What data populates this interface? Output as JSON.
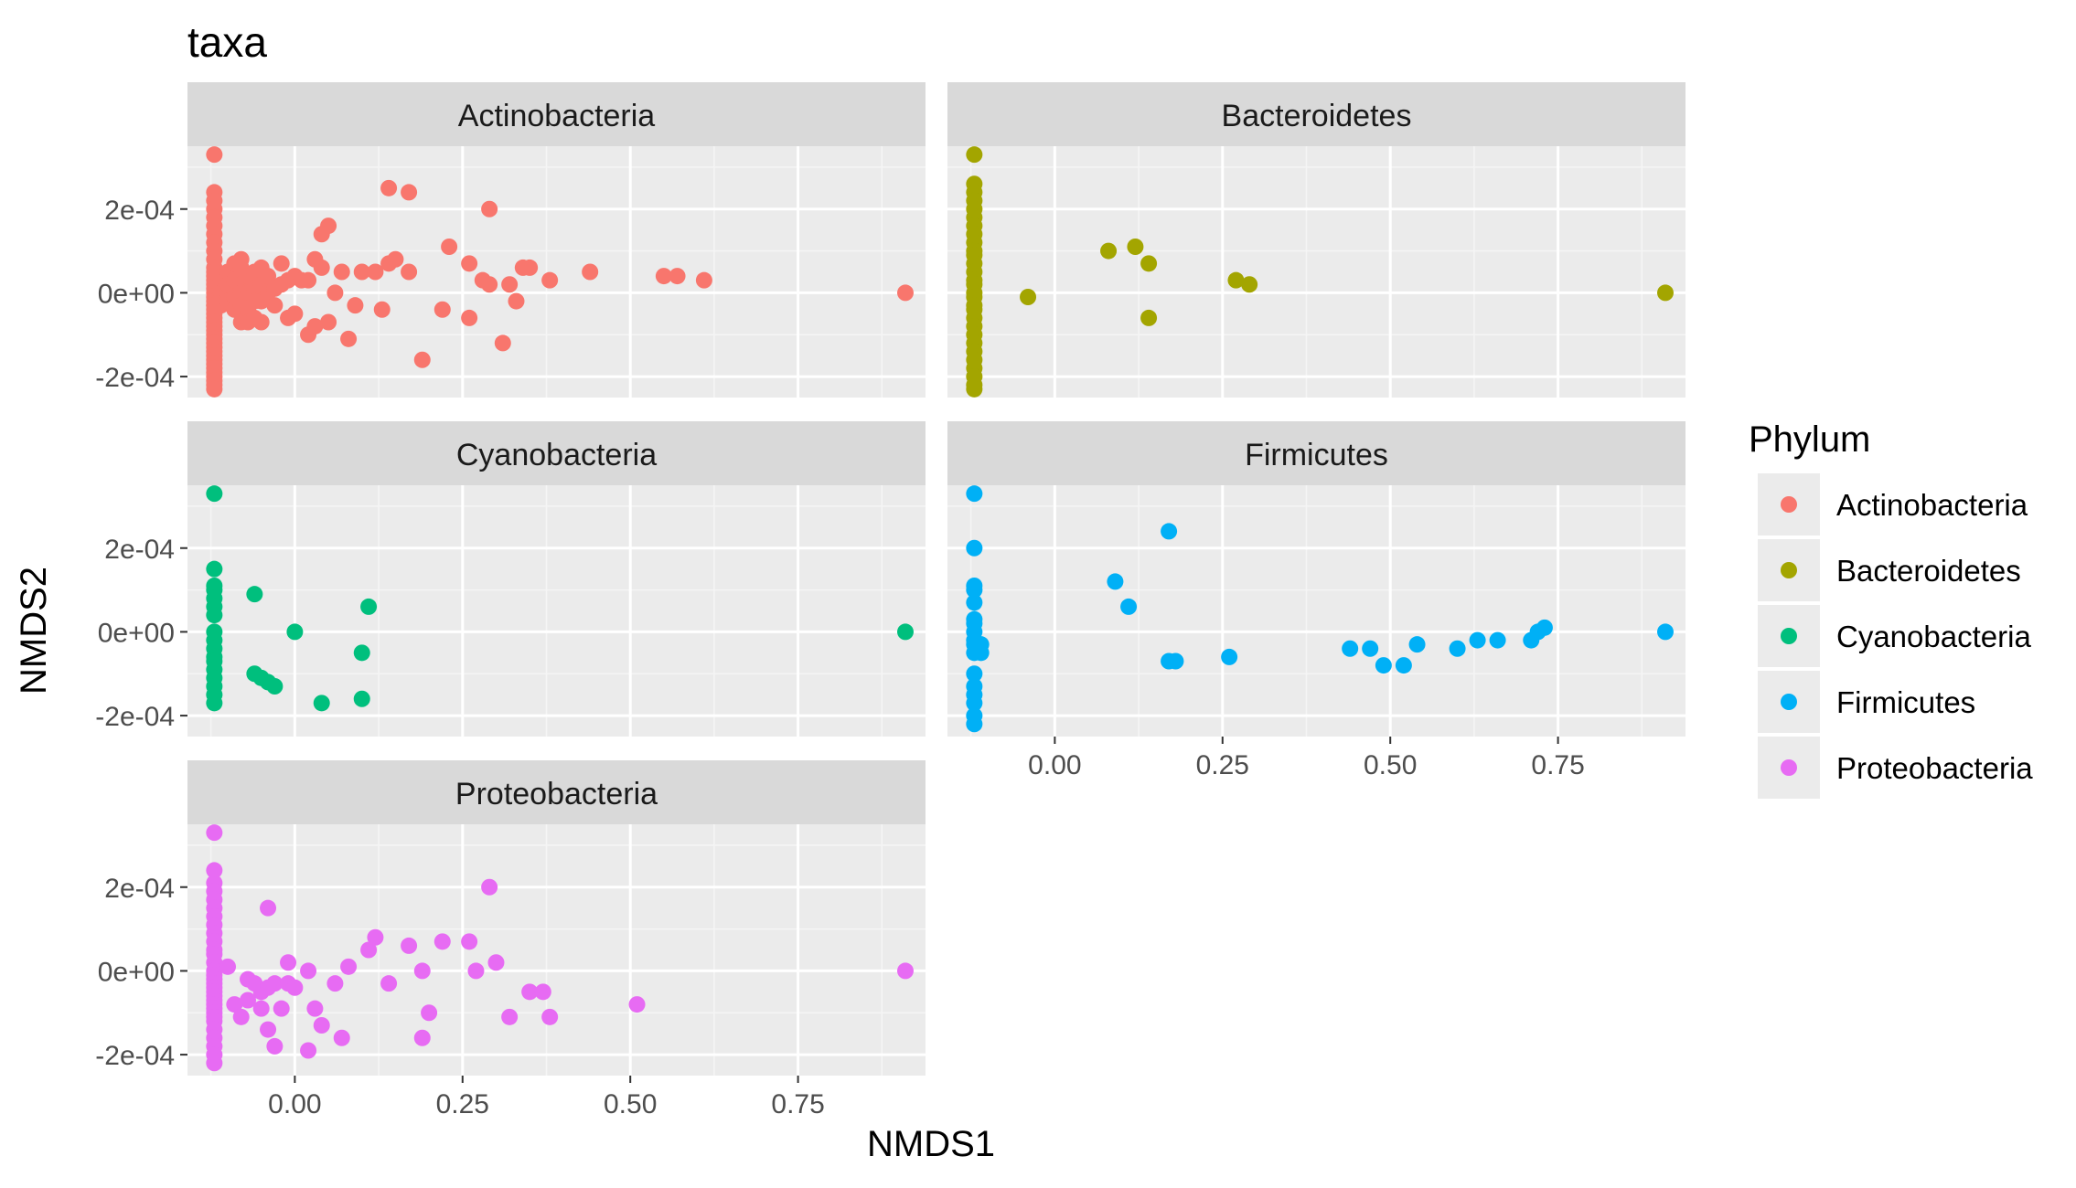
{
  "chart_data": {
    "type": "scatter",
    "title": "taxa",
    "xlabel": "NMDS1",
    "ylabel": "NMDS2",
    "xlim": [
      -0.16,
      0.94
    ],
    "ylim": [
      -0.00025,
      0.00035
    ],
    "x_ticks": [
      0,
      0.25,
      0.5,
      0.75
    ],
    "x_tick_labels": [
      "0.00",
      "0.25",
      "0.50",
      "0.75"
    ],
    "y_ticks": [
      -0.0002,
      0,
      0.0002
    ],
    "y_tick_labels": [
      "-2e-04",
      "0e+00",
      "2e-04"
    ],
    "grid": true,
    "legend": {
      "title": "Phylum",
      "position": "right"
    },
    "colors": {
      "Actinobacteria": "#F8766D",
      "Bacteroidetes": "#A3A500",
      "Cyanobacteria": "#00BF7D",
      "Firmicutes": "#00B0F6",
      "Proteobacteria": "#E76BF3"
    },
    "series": [
      {
        "name": "Actinobacteria",
        "x": [
          -0.12,
          -0.12,
          -0.12,
          -0.12,
          -0.12,
          -0.12,
          -0.12,
          -0.12,
          -0.12,
          -0.12,
          -0.12,
          -0.12,
          -0.12,
          -0.12,
          -0.12,
          -0.12,
          -0.12,
          -0.12,
          -0.12,
          -0.12,
          -0.12,
          -0.12,
          -0.12,
          -0.12,
          -0.12,
          -0.12,
          -0.12,
          -0.12,
          -0.12,
          -0.12,
          -0.12,
          -0.12,
          -0.12,
          -0.12,
          -0.12,
          -0.12,
          -0.12,
          -0.12,
          -0.12,
          -0.12,
          -0.12,
          -0.11,
          -0.11,
          -0.11,
          -0.1,
          -0.1,
          -0.1,
          -0.1,
          -0.09,
          -0.09,
          -0.09,
          -0.09,
          -0.08,
          -0.08,
          -0.08,
          -0.08,
          -0.08,
          -0.08,
          -0.07,
          -0.07,
          -0.07,
          -0.07,
          -0.06,
          -0.06,
          -0.06,
          -0.06,
          -0.05,
          -0.05,
          -0.05,
          -0.05,
          -0.04,
          -0.04,
          -0.03,
          -0.03,
          -0.02,
          -0.02,
          -0.01,
          -0.01,
          0.0,
          0.0,
          0.01,
          0.02,
          0.02,
          0.03,
          0.03,
          0.04,
          0.04,
          0.05,
          0.05,
          0.06,
          0.07,
          0.08,
          0.09,
          0.1,
          0.12,
          0.13,
          0.14,
          0.14,
          0.15,
          0.17,
          0.17,
          0.19,
          0.22,
          0.23,
          0.26,
          0.26,
          0.28,
          0.29,
          0.29,
          0.31,
          0.32,
          0.33,
          0.34,
          0.35,
          0.38,
          0.44,
          0.55,
          0.57,
          0.61,
          0.91
        ],
        "y": [
          0.00033,
          0.00024,
          0.00022,
          0.0002,
          0.00018,
          0.00016,
          0.00014,
          0.00012,
          0.0001,
          8e-05,
          6e-05,
          4e-05,
          2e-05,
          1e-05,
          0.0,
          -1e-05,
          -2e-05,
          -3e-05,
          -4e-05,
          -5e-05,
          -6e-05,
          -7e-05,
          -8e-05,
          -9e-05,
          -0.0001,
          -0.00011,
          -0.00012,
          -0.00013,
          -0.00014,
          -0.00015,
          -0.00016,
          -0.00017,
          -0.00018,
          -0.00019,
          -0.0002,
          -0.00021,
          -0.00022,
          -0.00023,
          3e-05,
          -3e-05,
          5e-05,
          4e-05,
          0.0,
          -3e-05,
          5e-05,
          0.0,
          -2e-05,
          2e-05,
          7e-05,
          3e-05,
          -1e-05,
          -4e-05,
          8e-05,
          6e-05,
          2e-05,
          0.0,
          -3e-05,
          -7e-05,
          4e-05,
          0.0,
          -4e-05,
          -7e-05,
          5e-05,
          1e-05,
          -2e-05,
          -6e-05,
          6e-05,
          2e-05,
          -2e-05,
          -7e-05,
          4e-05,
          0.0,
          1e-05,
          -3e-05,
          7e-05,
          2e-05,
          3e-05,
          -6e-05,
          4e-05,
          -5e-05,
          3e-05,
          3e-05,
          -0.0001,
          8e-05,
          -8e-05,
          0.00014,
          6e-05,
          0.00016,
          -7e-05,
          0.0,
          5e-05,
          -0.00011,
          -3e-05,
          5e-05,
          5e-05,
          -4e-05,
          0.00025,
          7e-05,
          8e-05,
          0.00024,
          5e-05,
          -0.00016,
          -4e-05,
          0.00011,
          7e-05,
          -6e-05,
          3e-05,
          2e-05,
          0.0002,
          -0.00012,
          2e-05,
          -2e-05,
          6e-05,
          6e-05,
          3e-05,
          5e-05,
          4e-05,
          4e-05,
          3e-05,
          0.0
        ],
        "facet": "Actinobacteria"
      },
      {
        "name": "Bacteroidetes",
        "x": [
          -0.12,
          -0.12,
          -0.12,
          -0.12,
          -0.12,
          -0.12,
          -0.12,
          -0.12,
          -0.12,
          -0.12,
          -0.12,
          -0.12,
          -0.12,
          -0.12,
          -0.12,
          -0.12,
          -0.12,
          -0.12,
          -0.12,
          -0.12,
          -0.12,
          -0.12,
          -0.12,
          -0.12,
          -0.12,
          -0.12,
          -0.12,
          -0.12,
          -0.12,
          -0.04,
          0.08,
          0.12,
          0.14,
          0.14,
          0.27,
          0.29,
          0.91
        ],
        "y": [
          0.00033,
          0.00026,
          0.00024,
          0.00022,
          0.0002,
          0.00018,
          0.00016,
          0.00014,
          0.00012,
          0.0001,
          9e-05,
          7e-05,
          5e-05,
          3e-05,
          2e-05,
          0.0,
          -1e-05,
          -3e-05,
          -4e-05,
          -6e-05,
          -8e-05,
          -0.0001,
          -0.00012,
          -0.00014,
          -0.00016,
          -0.00018,
          -0.0002,
          -0.00022,
          -0.00023,
          -1e-05,
          0.0001,
          0.00011,
          7e-05,
          -6e-05,
          3e-05,
          2e-05,
          0.0
        ],
        "facet": "Bacteroidetes"
      },
      {
        "name": "Cyanobacteria",
        "x": [
          -0.12,
          -0.12,
          -0.12,
          -0.12,
          -0.12,
          -0.12,
          -0.12,
          -0.12,
          -0.12,
          -0.12,
          -0.12,
          -0.12,
          -0.12,
          -0.12,
          -0.12,
          -0.12,
          -0.12,
          -0.06,
          -0.06,
          -0.05,
          -0.04,
          -0.03,
          0.0,
          0.04,
          0.1,
          0.1,
          0.11,
          0.91
        ],
        "y": [
          0.00033,
          0.00015,
          0.00011,
          0.0001,
          8e-05,
          6e-05,
          4e-05,
          0.0,
          -2e-05,
          -4e-05,
          -6e-05,
          -7e-05,
          -9e-05,
          -0.00011,
          -0.00013,
          -0.00015,
          -0.00017,
          9e-05,
          -0.0001,
          -0.00011,
          -0.00012,
          -0.00013,
          0.0,
          -0.00017,
          -5e-05,
          -0.00016,
          6e-05,
          0.0
        ],
        "facet": "Cyanobacteria"
      },
      {
        "name": "Firmicutes",
        "x": [
          -0.12,
          -0.12,
          -0.12,
          -0.12,
          -0.12,
          -0.12,
          -0.12,
          -0.12,
          -0.12,
          -0.12,
          -0.12,
          -0.12,
          -0.12,
          -0.12,
          -0.12,
          -0.12,
          -0.12,
          -0.11,
          -0.11,
          0.09,
          0.11,
          0.17,
          0.17,
          0.18,
          0.26,
          0.44,
          0.47,
          0.49,
          0.52,
          0.54,
          0.6,
          0.63,
          0.66,
          0.71,
          0.72,
          0.73,
          0.91
        ],
        "y": [
          0.00033,
          0.0002,
          0.00011,
          0.0001,
          7e-05,
          3e-05,
          2e-05,
          0.0,
          -2e-05,
          -5e-05,
          -0.0001,
          -0.00015,
          -0.00017,
          -0.0002,
          -0.00022,
          -0.00013,
          -3e-05,
          -3e-05,
          -5e-05,
          0.00012,
          6e-05,
          0.00024,
          -7e-05,
          -7e-05,
          -6e-05,
          -4e-05,
          -4e-05,
          -8e-05,
          -8e-05,
          -3e-05,
          -4e-05,
          -2e-05,
          -2e-05,
          -2e-05,
          0.0,
          1e-05,
          0.0
        ],
        "facet": "Firmicutes"
      },
      {
        "name": "Proteobacteria",
        "x": [
          -0.12,
          -0.12,
          -0.12,
          -0.12,
          -0.12,
          -0.12,
          -0.12,
          -0.12,
          -0.12,
          -0.12,
          -0.12,
          -0.12,
          -0.12,
          -0.12,
          -0.12,
          -0.12,
          -0.12,
          -0.12,
          -0.12,
          -0.12,
          -0.12,
          -0.12,
          -0.12,
          -0.12,
          -0.12,
          -0.12,
          -0.12,
          -0.12,
          -0.12,
          -0.12,
          -0.12,
          -0.1,
          -0.09,
          -0.08,
          -0.07,
          -0.07,
          -0.06,
          -0.05,
          -0.05,
          -0.04,
          -0.04,
          -0.04,
          -0.03,
          -0.03,
          -0.02,
          -0.01,
          -0.01,
          0.0,
          0.02,
          0.02,
          0.03,
          0.04,
          0.06,
          0.07,
          0.08,
          0.11,
          0.12,
          0.14,
          0.17,
          0.19,
          0.19,
          0.2,
          0.22,
          0.26,
          0.27,
          0.29,
          0.3,
          0.32,
          0.35,
          0.37,
          0.38,
          0.51,
          0.91
        ],
        "y": [
          0.00033,
          0.00024,
          0.00021,
          0.00019,
          0.00017,
          0.00015,
          0.00013,
          0.00011,
          9e-05,
          7e-05,
          5e-05,
          4e-05,
          2e-05,
          0.0,
          -1e-05,
          -2e-05,
          -3e-05,
          -4e-05,
          -5e-05,
          -6e-05,
          -7e-05,
          -8e-05,
          -9e-05,
          -0.0001,
          -0.00011,
          -0.00012,
          -0.00014,
          -0.00016,
          -0.00018,
          -0.0002,
          -0.00022,
          1e-05,
          -8e-05,
          -0.00011,
          -7e-05,
          -2e-05,
          -3e-05,
          -5e-05,
          -9e-05,
          -4e-05,
          -0.00014,
          0.00015,
          -3e-05,
          -0.00018,
          -9e-05,
          -3e-05,
          2e-05,
          -4e-05,
          -0.00019,
          0.0,
          -9e-05,
          -0.00013,
          -3e-05,
          -0.00016,
          1e-05,
          5e-05,
          8e-05,
          -3e-05,
          6e-05,
          -0.00016,
          0.0,
          -0.0001,
          7e-05,
          7e-05,
          0.0,
          0.0002,
          2e-05,
          -0.00011,
          -5e-05,
          -5e-05,
          -0.00011,
          -8e-05,
          0.0
        ],
        "facet": "Proteobacteria"
      }
    ],
    "facets": [
      "Actinobacteria",
      "Bacteroidetes",
      "Cyanobacteria",
      "Firmicutes",
      "Proteobacteria"
    ]
  }
}
